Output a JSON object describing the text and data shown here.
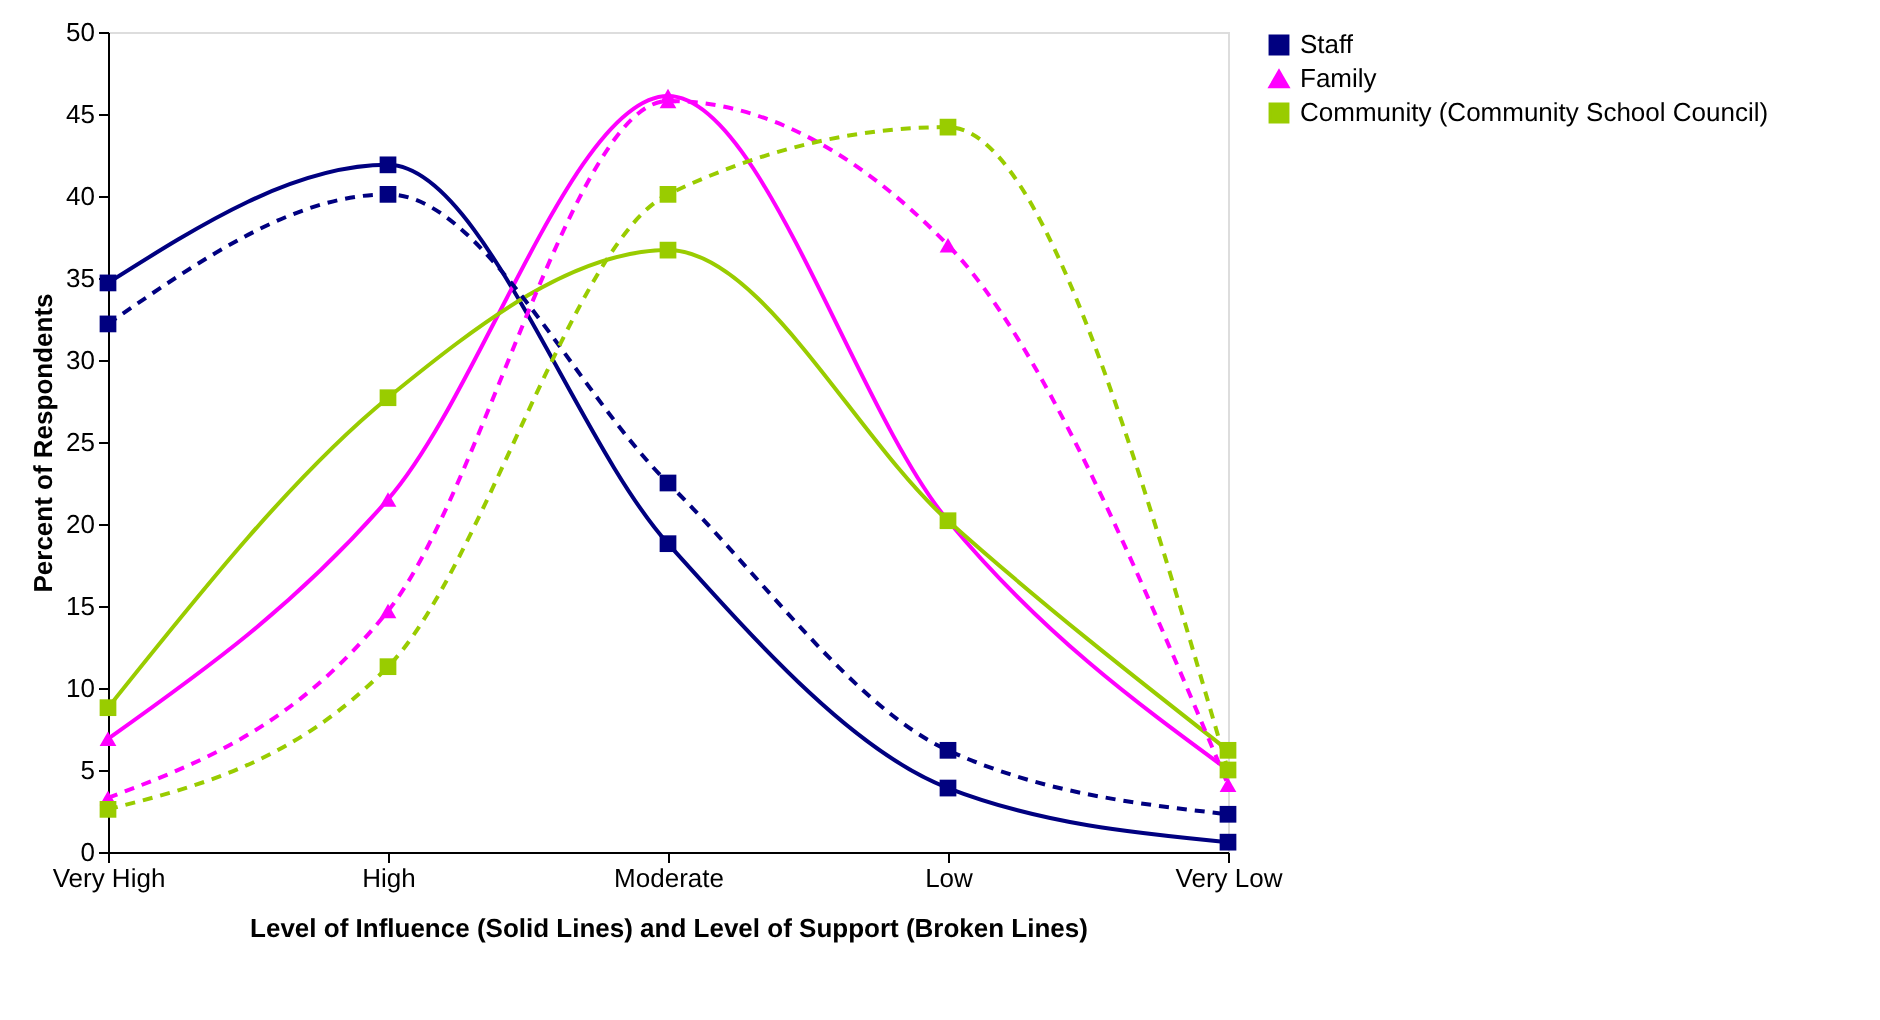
{
  "chart_data": {
    "type": "line",
    "xlabel": "Level of Influence (Solid Lines) and Level of Support (Broken Lines)",
    "ylabel": "Percent of Respondents",
    "categories": [
      "Very High",
      "High",
      "Moderate",
      "Low",
      "Very Low"
    ],
    "ylim": [
      0,
      50
    ],
    "yticks": [
      0,
      5,
      10,
      15,
      20,
      25,
      30,
      35,
      40,
      45,
      50
    ],
    "grid": false,
    "legend": "right",
    "series": [
      {
        "name": "Staff",
        "color": "#000080",
        "marker": "square",
        "line_style": "solid",
        "values": [
          34.7,
          41.9,
          18.8,
          3.9,
          0.6
        ]
      },
      {
        "name": "Family",
        "color": "#ff00ff",
        "marker": "triangle",
        "line_style": "solid",
        "values": [
          6.9,
          21.5,
          46.1,
          20.2,
          5.0
        ]
      },
      {
        "name": "Community (Community School Council)",
        "color": "#99cc00",
        "marker": "square",
        "line_style": "solid",
        "values": [
          8.8,
          27.7,
          36.7,
          20.2,
          6.2
        ]
      },
      {
        "color": "#000080",
        "marker": "square",
        "line_style": "dashed",
        "values": [
          32.2,
          40.1,
          22.5,
          6.2,
          2.3
        ]
      },
      {
        "color": "#ff00ff",
        "marker": "triangle",
        "line_style": "dashed",
        "values": [
          3.3,
          14.7,
          45.8,
          37.0,
          4.1
        ]
      },
      {
        "color": "#99cc00",
        "marker": "square",
        "line_style": "dashed",
        "values": [
          2.6,
          11.3,
          40.1,
          44.2,
          5.0
        ]
      }
    ]
  }
}
